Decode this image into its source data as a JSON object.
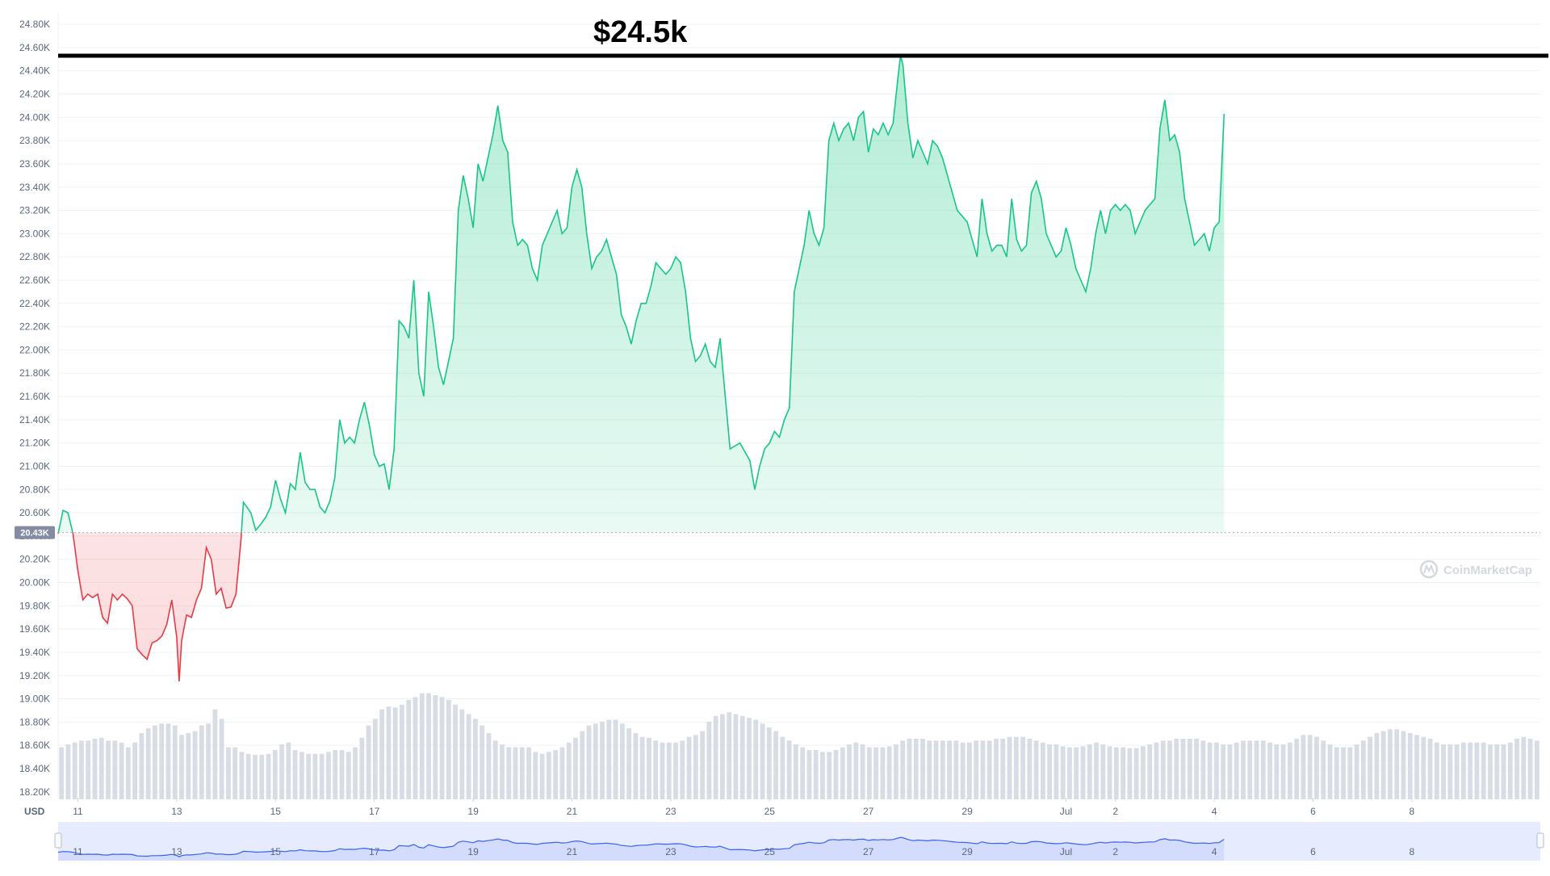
{
  "chart_data": {
    "type": "area",
    "title": "",
    "xlabel": "",
    "ylabel": "USD",
    "currency_label": "USD",
    "ylim": [
      18150,
      24870
    ],
    "y_ticks": [
      "18.20K",
      "18.40K",
      "18.60K",
      "18.80K",
      "19.00K",
      "19.20K",
      "19.40K",
      "19.60K",
      "19.80K",
      "20.00K",
      "20.20K",
      "20.40K",
      "20.60K",
      "20.80K",
      "21.00K",
      "21.20K",
      "21.40K",
      "21.60K",
      "21.80K",
      "22.00K",
      "22.20K",
      "22.40K",
      "22.60K",
      "22.80K",
      "23.00K",
      "23.20K",
      "23.40K",
      "23.60K",
      "23.80K",
      "24.00K",
      "24.20K",
      "24.40K",
      "24.60K",
      "24.80K"
    ],
    "y_tick_values": [
      18200,
      18400,
      18600,
      18800,
      19000,
      19200,
      19400,
      19600,
      19800,
      20000,
      20200,
      20400,
      20600,
      20800,
      21000,
      21200,
      21400,
      21600,
      21800,
      22000,
      22200,
      22400,
      22600,
      22800,
      23000,
      23200,
      23400,
      23600,
      23800,
      24000,
      24200,
      24400,
      24600,
      24800
    ],
    "x_ticks": [
      "11",
      "13",
      "15",
      "17",
      "19",
      "21",
      "23",
      "25",
      "27",
      "29",
      "Jul",
      "2",
      "4",
      "6",
      "8"
    ],
    "x_tick_positions": [
      1,
      3,
      5,
      7,
      9,
      11,
      13,
      15,
      17,
      19,
      21,
      22,
      24,
      26,
      28
    ],
    "xlim": [
      0.6,
      30.6
    ],
    "current_price_label": "20.43K",
    "current_price": 20430,
    "grid": true,
    "annotation": {
      "text": "$24.5k",
      "level": 24530
    },
    "watermark": "CoinMarketCap",
    "up_color": "#16c784",
    "down_color": "#ea3943",
    "nav_color": "#3861fb",
    "series": [
      {
        "points": [
          [
            0.6,
            20420
          ],
          [
            0.7,
            20620
          ],
          [
            0.8,
            20600
          ],
          [
            0.9,
            20420
          ],
          [
            1.0,
            20100
          ],
          [
            1.1,
            19850
          ],
          [
            1.2,
            19900
          ],
          [
            1.3,
            19870
          ],
          [
            1.4,
            19900
          ],
          [
            1.5,
            19700
          ],
          [
            1.6,
            19650
          ],
          [
            1.7,
            19900
          ],
          [
            1.8,
            19850
          ],
          [
            1.9,
            19900
          ],
          [
            2.0,
            19860
          ],
          [
            2.1,
            19800
          ],
          [
            2.2,
            19430
          ],
          [
            2.3,
            19380
          ],
          [
            2.4,
            19340
          ],
          [
            2.5,
            19480
          ],
          [
            2.6,
            19500
          ],
          [
            2.7,
            19540
          ],
          [
            2.8,
            19640
          ],
          [
            2.9,
            19850
          ],
          [
            3.0,
            19530
          ],
          [
            3.05,
            19150
          ],
          [
            3.1,
            19500
          ],
          [
            3.2,
            19720
          ],
          [
            3.3,
            19700
          ],
          [
            3.4,
            19850
          ],
          [
            3.5,
            19950
          ],
          [
            3.6,
            20300
          ],
          [
            3.7,
            20200
          ],
          [
            3.8,
            19900
          ],
          [
            3.9,
            19950
          ],
          [
            4.0,
            19780
          ],
          [
            4.1,
            19790
          ],
          [
            4.2,
            19900
          ],
          [
            4.3,
            20360
          ],
          [
            4.35,
            20690
          ],
          [
            4.5,
            20600
          ],
          [
            4.6,
            20450
          ],
          [
            4.7,
            20500
          ],
          [
            4.8,
            20560
          ],
          [
            4.9,
            20650
          ],
          [
            5.0,
            20880
          ],
          [
            5.1,
            20720
          ],
          [
            5.2,
            20600
          ],
          [
            5.3,
            20850
          ],
          [
            5.4,
            20800
          ],
          [
            5.5,
            21120
          ],
          [
            5.6,
            20860
          ],
          [
            5.7,
            20800
          ],
          [
            5.8,
            20800
          ],
          [
            5.9,
            20650
          ],
          [
            6.0,
            20600
          ],
          [
            6.1,
            20700
          ],
          [
            6.2,
            20900
          ],
          [
            6.3,
            21400
          ],
          [
            6.4,
            21200
          ],
          [
            6.5,
            21250
          ],
          [
            6.6,
            21200
          ],
          [
            6.7,
            21400
          ],
          [
            6.8,
            21550
          ],
          [
            6.9,
            21350
          ],
          [
            7.0,
            21100
          ],
          [
            7.1,
            21000
          ],
          [
            7.2,
            21020
          ],
          [
            7.3,
            20800
          ],
          [
            7.4,
            21150
          ],
          [
            7.5,
            22250
          ],
          [
            7.6,
            22200
          ],
          [
            7.7,
            22100
          ],
          [
            7.8,
            22600
          ],
          [
            7.9,
            21800
          ],
          [
            8.0,
            21600
          ],
          [
            8.1,
            22500
          ],
          [
            8.2,
            22200
          ],
          [
            8.3,
            21850
          ],
          [
            8.4,
            21700
          ],
          [
            8.5,
            21900
          ],
          [
            8.6,
            22100
          ],
          [
            8.7,
            23200
          ],
          [
            8.8,
            23500
          ],
          [
            8.9,
            23300
          ],
          [
            9.0,
            23050
          ],
          [
            9.1,
            23600
          ],
          [
            9.2,
            23450
          ],
          [
            9.3,
            23650
          ],
          [
            9.4,
            23850
          ],
          [
            9.5,
            24100
          ],
          [
            9.6,
            23800
          ],
          [
            9.7,
            23700
          ],
          [
            9.8,
            23100
          ],
          [
            9.9,
            22900
          ],
          [
            10.0,
            22950
          ],
          [
            10.1,
            22900
          ],
          [
            10.2,
            22700
          ],
          [
            10.3,
            22600
          ],
          [
            10.4,
            22900
          ],
          [
            10.5,
            23000
          ],
          [
            10.6,
            23100
          ],
          [
            10.7,
            23200
          ],
          [
            10.8,
            23000
          ],
          [
            10.9,
            23050
          ],
          [
            11.0,
            23400
          ],
          [
            11.1,
            23550
          ],
          [
            11.2,
            23400
          ],
          [
            11.3,
            23000
          ],
          [
            11.4,
            22700
          ],
          [
            11.5,
            22800
          ],
          [
            11.6,
            22850
          ],
          [
            11.7,
            22950
          ],
          [
            11.8,
            22800
          ],
          [
            11.9,
            22650
          ],
          [
            12.0,
            22300
          ],
          [
            12.1,
            22200
          ],
          [
            12.2,
            22050
          ],
          [
            12.3,
            22250
          ],
          [
            12.4,
            22400
          ],
          [
            12.5,
            22400
          ],
          [
            12.6,
            22550
          ],
          [
            12.7,
            22750
          ],
          [
            12.8,
            22700
          ],
          [
            12.9,
            22650
          ],
          [
            13.0,
            22700
          ],
          [
            13.1,
            22800
          ],
          [
            13.2,
            22750
          ],
          [
            13.3,
            22500
          ],
          [
            13.4,
            22100
          ],
          [
            13.5,
            21900
          ],
          [
            13.6,
            21950
          ],
          [
            13.7,
            22050
          ],
          [
            13.8,
            21900
          ],
          [
            13.9,
            21850
          ],
          [
            14.0,
            22100
          ],
          [
            14.05,
            21850
          ],
          [
            14.2,
            21150
          ],
          [
            14.4,
            21200
          ],
          [
            14.6,
            21050
          ],
          [
            14.7,
            20800
          ],
          [
            14.8,
            21000
          ],
          [
            14.9,
            21150
          ],
          [
            15.0,
            21200
          ],
          [
            15.1,
            21300
          ],
          [
            15.2,
            21250
          ],
          [
            15.3,
            21400
          ],
          [
            15.4,
            21500
          ],
          [
            15.5,
            22500
          ],
          [
            15.6,
            22700
          ],
          [
            15.7,
            22900
          ],
          [
            15.8,
            23200
          ],
          [
            15.9,
            23000
          ],
          [
            16.0,
            22900
          ],
          [
            16.1,
            23050
          ],
          [
            16.2,
            23800
          ],
          [
            16.3,
            23950
          ],
          [
            16.4,
            23800
          ],
          [
            16.5,
            23900
          ],
          [
            16.6,
            23950
          ],
          [
            16.7,
            23800
          ],
          [
            16.8,
            24000
          ],
          [
            16.9,
            24050
          ],
          [
            17.0,
            23700
          ],
          [
            17.1,
            23900
          ],
          [
            17.2,
            23850
          ],
          [
            17.3,
            23950
          ],
          [
            17.4,
            23850
          ],
          [
            17.5,
            23950
          ],
          [
            17.6,
            24350
          ],
          [
            17.65,
            24530
          ],
          [
            17.7,
            24450
          ],
          [
            17.8,
            23950
          ],
          [
            17.9,
            23650
          ],
          [
            18.0,
            23800
          ],
          [
            18.1,
            23700
          ],
          [
            18.2,
            23600
          ],
          [
            18.3,
            23800
          ],
          [
            18.4,
            23750
          ],
          [
            18.5,
            23650
          ],
          [
            18.6,
            23500
          ],
          [
            18.7,
            23350
          ],
          [
            18.8,
            23200
          ],
          [
            18.9,
            23150
          ],
          [
            19.0,
            23100
          ],
          [
            19.1,
            22950
          ],
          [
            19.2,
            22800
          ],
          [
            19.3,
            23300
          ],
          [
            19.4,
            23000
          ],
          [
            19.5,
            22850
          ],
          [
            19.6,
            22900
          ],
          [
            19.7,
            22900
          ],
          [
            19.8,
            22800
          ],
          [
            19.9,
            23300
          ],
          [
            20.0,
            22950
          ],
          [
            20.1,
            22850
          ],
          [
            20.2,
            22900
          ],
          [
            20.3,
            23350
          ],
          [
            20.4,
            23450
          ],
          [
            20.5,
            23300
          ],
          [
            20.6,
            23000
          ],
          [
            20.7,
            22900
          ],
          [
            20.8,
            22800
          ],
          [
            20.9,
            22850
          ],
          [
            21.0,
            23050
          ],
          [
            21.1,
            22900
          ],
          [
            21.2,
            22700
          ],
          [
            21.3,
            22600
          ],
          [
            21.4,
            22500
          ],
          [
            21.5,
            22700
          ],
          [
            21.6,
            23000
          ],
          [
            21.7,
            23200
          ],
          [
            21.8,
            23000
          ],
          [
            21.9,
            23200
          ],
          [
            22.0,
            23250
          ],
          [
            22.1,
            23200
          ],
          [
            22.2,
            23250
          ],
          [
            22.3,
            23200
          ],
          [
            22.4,
            23000
          ],
          [
            22.5,
            23100
          ],
          [
            22.6,
            23200
          ],
          [
            22.7,
            23250
          ],
          [
            22.8,
            23300
          ],
          [
            22.9,
            23900
          ],
          [
            23.0,
            24150
          ],
          [
            23.1,
            23800
          ],
          [
            23.2,
            23850
          ],
          [
            23.3,
            23700
          ],
          [
            23.4,
            23300
          ],
          [
            23.5,
            23100
          ],
          [
            23.6,
            22900
          ],
          [
            23.7,
            22950
          ],
          [
            23.8,
            23000
          ],
          [
            23.9,
            22850
          ],
          [
            24.0,
            23050
          ],
          [
            24.1,
            23100
          ],
          [
            24.2,
            24030
          ]
        ]
      }
    ],
    "volume": [
      55,
      58,
      60,
      62,
      62,
      64,
      65,
      62,
      62,
      60,
      55,
      60,
      70,
      75,
      78,
      80,
      80,
      78,
      68,
      70,
      72,
      78,
      80,
      95,
      85,
      55,
      55,
      50,
      48,
      47,
      47,
      48,
      52,
      58,
      60,
      52,
      50,
      48,
      48,
      48,
      50,
      52,
      52,
      50,
      55,
      65,
      78,
      85,
      95,
      98,
      97,
      100,
      105,
      108,
      112,
      112,
      110,
      108,
      105,
      100,
      95,
      90,
      85,
      78,
      70,
      62,
      58,
      55,
      55,
      55,
      55,
      50,
      48,
      50,
      52,
      55,
      60,
      65,
      72,
      78,
      80,
      82,
      84,
      84,
      80,
      75,
      70,
      66,
      65,
      62,
      60,
      60,
      60,
      62,
      66,
      68,
      72,
      82,
      88,
      90,
      92,
      90,
      88,
      86,
      84,
      80,
      76,
      72,
      66,
      62,
      58,
      55,
      52,
      52,
      50,
      50,
      52,
      55,
      58,
      60,
      58,
      55,
      55,
      55,
      56,
      58,
      62,
      64,
      64,
      64,
      62,
      62,
      62,
      62,
      62,
      60,
      60,
      62,
      62,
      62,
      64,
      64,
      66,
      66,
      66,
      64,
      62,
      60,
      58,
      58,
      56,
      55,
      55,
      56,
      58,
      60,
      58,
      56,
      55,
      55,
      54,
      54,
      56,
      58,
      60,
      62,
      62,
      64,
      64,
      64,
      64,
      62,
      60,
      60,
      58,
      58,
      60,
      62,
      62,
      62,
      62,
      60,
      58,
      58,
      60,
      64,
      68,
      68,
      66,
      62,
      58,
      55,
      55,
      55,
      58,
      62,
      66,
      70,
      72,
      74,
      74,
      72,
      70,
      68,
      66,
      64,
      60,
      58,
      58,
      58,
      60,
      60,
      60,
      60,
      58,
      58,
      58,
      60,
      64,
      66,
      64,
      62
    ]
  }
}
